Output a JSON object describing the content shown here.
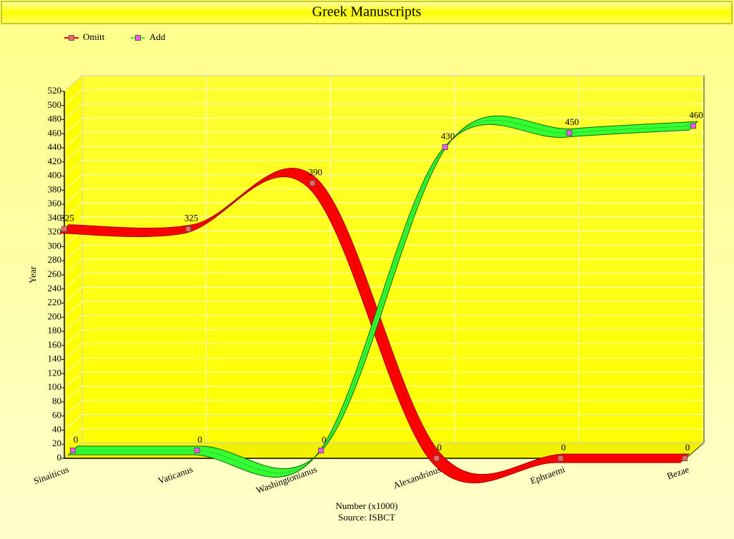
{
  "chart_data": {
    "type": "line",
    "title": "Greek Manuscripts",
    "y_label": "Year",
    "x_label": "Number (x1000)",
    "source": "Source: ISBCT",
    "categories": [
      "Sinaiticus",
      "Vaticanus",
      "Washingtonianus",
      "Alexandrinus",
      "Ephraemi",
      "Bezae"
    ],
    "series": [
      {
        "name": "Omitt",
        "color": "#ff0000",
        "values": [
          325,
          325,
          390,
          0,
          0,
          0
        ]
      },
      {
        "name": "Add",
        "color": "#33ff33",
        "values": [
          0,
          0,
          0,
          430,
          450,
          460
        ]
      }
    ],
    "ylim": [
      0,
      520
    ],
    "yticks": [
      0,
      20,
      40,
      60,
      80,
      100,
      120,
      140,
      160,
      180,
      200,
      220,
      240,
      260,
      280,
      300,
      320,
      340,
      360,
      380,
      400,
      420,
      440,
      460,
      480,
      500,
      520
    ],
    "grid": true
  }
}
